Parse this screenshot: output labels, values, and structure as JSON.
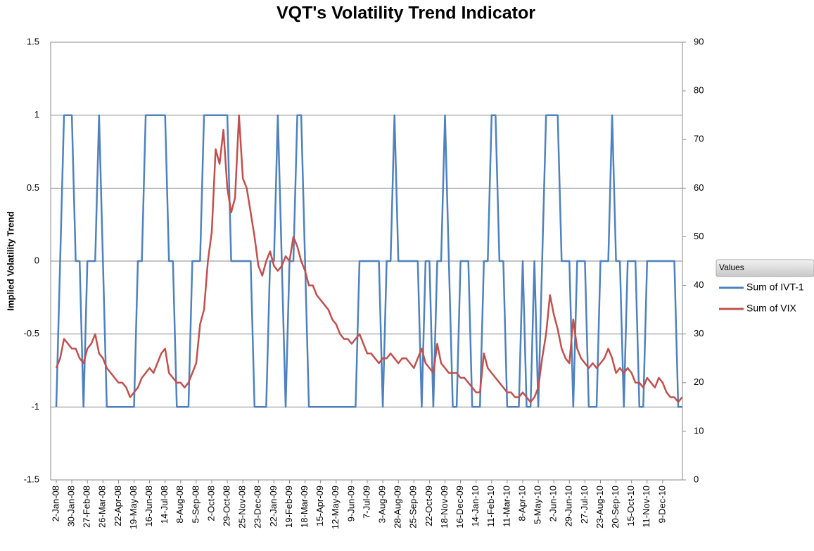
{
  "chart_data": {
    "type": "line",
    "title": "VQT's  Volatility Trend Indicator",
    "y_label": "Implied Volatility Trend",
    "legend_title": "Values",
    "legend": "right",
    "grid": true,
    "ylim": [
      -1.5,
      1.5
    ],
    "yticks": [
      -1.5,
      -1,
      -0.5,
      0,
      0.5,
      1,
      1.5
    ],
    "y2lim": [
      0,
      90
    ],
    "y2ticks": [
      0,
      10,
      20,
      30,
      40,
      50,
      60,
      70,
      80,
      90
    ],
    "categories": [
      "2-Jan-08",
      null,
      null,
      null,
      "30-Jan-08",
      null,
      null,
      null,
      "27-Feb-08",
      null,
      null,
      null,
      "26-Mar-08",
      null,
      null,
      null,
      "22-Apr-08",
      null,
      null,
      null,
      "19-May-08",
      null,
      null,
      null,
      "16-Jun-08",
      null,
      null,
      null,
      "14-Jul-08",
      null,
      null,
      null,
      "8-Aug-08",
      null,
      null,
      null,
      "5-Sep-08",
      null,
      null,
      null,
      "2-Oct-08",
      null,
      null,
      null,
      "29-Oct-08",
      null,
      null,
      null,
      "25-Nov-08",
      null,
      null,
      null,
      "23-Dec-08",
      null,
      null,
      null,
      "22-Jan-09",
      null,
      null,
      null,
      "19-Feb-09",
      null,
      null,
      null,
      "18-Mar-09",
      null,
      null,
      null,
      "15-Apr-09",
      null,
      null,
      null,
      "12-May-09",
      null,
      null,
      null,
      "9-Jun-09",
      null,
      null,
      null,
      "7-Jul-09",
      null,
      null,
      null,
      "3-Aug-09",
      null,
      null,
      null,
      "28-Aug-09",
      null,
      null,
      null,
      "25-Sep-09",
      null,
      null,
      null,
      "22-Oct-09",
      null,
      null,
      null,
      "18-Nov-09",
      null,
      null,
      null,
      "16-Dec-09",
      null,
      null,
      null,
      "14-Jan-10",
      null,
      null,
      null,
      "11-Feb-10",
      null,
      null,
      null,
      "11-Mar-10",
      null,
      null,
      null,
      "8-Apr-10",
      null,
      null,
      null,
      "5-May-10",
      null,
      null,
      null,
      "2-Jun-10",
      null,
      null,
      null,
      "29-Jun-10",
      null,
      null,
      null,
      "27-Jul-10",
      null,
      null,
      null,
      "23-Aug-10",
      null,
      null,
      null,
      "20-Sep-10",
      null,
      null,
      null,
      "15-Oct-10",
      null,
      null,
      null,
      "11-Nov-10",
      null,
      null,
      null,
      "9-Dec-10",
      null,
      null,
      null,
      null,
      null
    ],
    "series": [
      {
        "name": "Sum of IVT-1",
        "color": "#4f81bd",
        "axis": "y",
        "values": [
          -1,
          0,
          1,
          1,
          1,
          0,
          0,
          -1,
          0,
          0,
          0,
          1,
          0,
          -1,
          -1,
          -1,
          -1,
          -1,
          -1,
          -1,
          -1,
          0,
          0,
          1,
          1,
          1,
          1,
          1,
          1,
          0,
          0,
          -1,
          -1,
          -1,
          -1,
          0,
          0,
          0,
          1,
          1,
          1,
          1,
          1,
          1,
          1,
          0,
          0,
          0,
          0,
          0,
          0,
          -1,
          -1,
          -1,
          -1,
          0,
          0,
          1,
          0,
          -1,
          0,
          0,
          1,
          1,
          0,
          -1,
          -1,
          -1,
          -1,
          -1,
          -1,
          -1,
          -1,
          -1,
          -1,
          -1,
          -1,
          -1,
          0,
          0,
          0,
          0,
          0,
          0,
          -1,
          0,
          0,
          1,
          0,
          0,
          0,
          0,
          0,
          0,
          -1,
          0,
          0,
          -1,
          0,
          0,
          1,
          0,
          -1,
          -1,
          0,
          0,
          0,
          -1,
          -1,
          -1,
          0,
          0,
          1,
          1,
          0,
          0,
          -1,
          -1,
          -1,
          -1,
          0,
          -1,
          -1,
          0,
          -1,
          0,
          1,
          1,
          1,
          1,
          0,
          0,
          0,
          -1,
          0,
          0,
          0,
          -1,
          -1,
          -1,
          0,
          0,
          0,
          1,
          0,
          0,
          -1,
          0,
          0,
          0,
          -1,
          -1,
          0,
          0,
          0,
          0,
          0,
          0,
          0,
          0,
          -1,
          -1
        ]
      },
      {
        "name": "Sum of VIX",
        "color": "#c0504d",
        "axis": "y2",
        "values": [
          23,
          25,
          29,
          28,
          27,
          27,
          25,
          24,
          27,
          28,
          30,
          26,
          25,
          23,
          22,
          21,
          20,
          20,
          19,
          17,
          18,
          19,
          21,
          22,
          23,
          22,
          24,
          26,
          27,
          22,
          21,
          20,
          20,
          19,
          20,
          22,
          24,
          32,
          35,
          45,
          51,
          68,
          65,
          72,
          60,
          55,
          58,
          75,
          62,
          60,
          55,
          50,
          44,
          42,
          45,
          47,
          44,
          43,
          44,
          46,
          45,
          50,
          48,
          45,
          43,
          40,
          40,
          38,
          37,
          36,
          35,
          33,
          32,
          30,
          29,
          29,
          28,
          29,
          30,
          28,
          26,
          26,
          25,
          24,
          25,
          25,
          26,
          25,
          24,
          25,
          25,
          24,
          23,
          25,
          27,
          24,
          23,
          22,
          28,
          24,
          23,
          22,
          22,
          22,
          21,
          21,
          20,
          19,
          18,
          18,
          26,
          23,
          22,
          21,
          20,
          19,
          18,
          18,
          17,
          17,
          18,
          17,
          16,
          17,
          19,
          25,
          30,
          38,
          34,
          31,
          27,
          25,
          24,
          33,
          27,
          25,
          24,
          23,
          24,
          23,
          24,
          25,
          27,
          25,
          22,
          23,
          22,
          23,
          22,
          20,
          20,
          19,
          21,
          20,
          19,
          21,
          20,
          18,
          17,
          17,
          16,
          17
        ]
      }
    ]
  }
}
